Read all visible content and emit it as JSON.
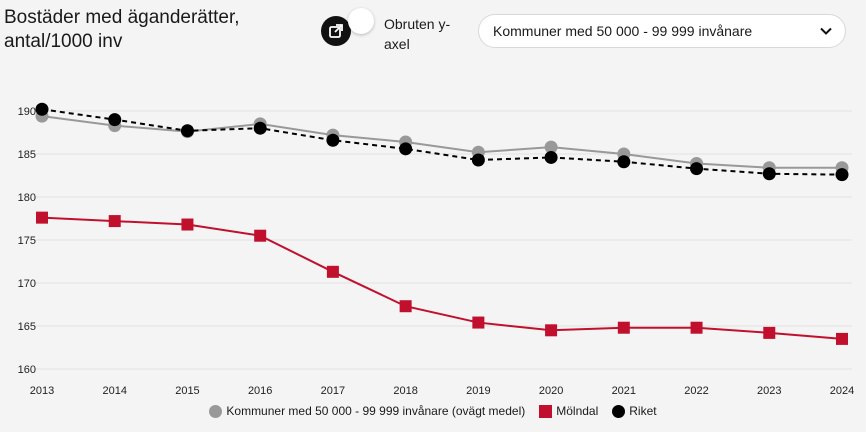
{
  "header": {
    "title_line1": "Bostäder med äganderätter,",
    "title_line2": "antal/1000 inv",
    "share_icon": "external-link-icon",
    "toggle_label_line1": "Obruten y-",
    "toggle_label_line2": "axel",
    "select_value": "Kommuner med 50 000 - 99 999 invånare"
  },
  "colors": {
    "kommuner": "#999999",
    "molndal": "#c0102e",
    "riket": "#000000",
    "grid": "#e2e2e2"
  },
  "chart_data": {
    "type": "line",
    "categories": [
      "2013",
      "2014",
      "2015",
      "2016",
      "2017",
      "2018",
      "2019",
      "2020",
      "2021",
      "2022",
      "2023",
      "2024"
    ],
    "ylim": [
      160,
      190
    ],
    "yticks": [
      160,
      165,
      170,
      175,
      180,
      185,
      190
    ],
    "grid": true,
    "legend_position": "bottom",
    "series": [
      {
        "name": "Kommuner med 50 000 - 99 999 invånare (ovägt medel)",
        "values": [
          189.4,
          188.3,
          187.6,
          188.5,
          187.2,
          186.4,
          185.2,
          185.8,
          185.0,
          183.9,
          183.4,
          183.4
        ],
        "marker": "circle",
        "dash": false
      },
      {
        "name": "Mölndal",
        "values": [
          177.6,
          177.2,
          176.8,
          175.5,
          171.3,
          167.3,
          165.4,
          164.5,
          164.8,
          164.8,
          164.2,
          163.5
        ],
        "marker": "square",
        "dash": false
      },
      {
        "name": "Riket",
        "values": [
          190.2,
          189.0,
          187.7,
          188.0,
          186.6,
          185.6,
          184.3,
          184.6,
          184.1,
          183.3,
          182.7,
          182.6
        ],
        "marker": "circle",
        "dash": true
      }
    ]
  }
}
